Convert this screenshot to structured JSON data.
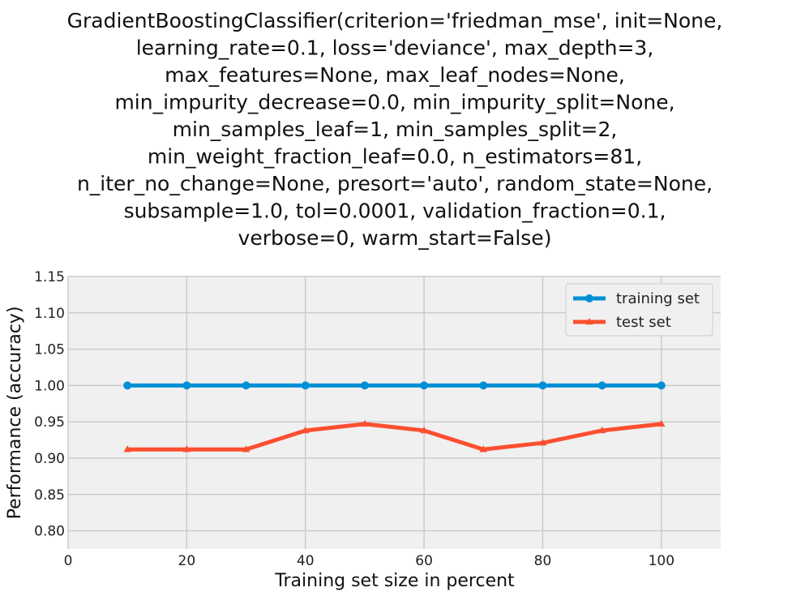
{
  "chart_data": {
    "type": "line",
    "title_lines": [
      "GradientBoostingClassifier(criterion='friedman_mse', init=None,",
      "learning_rate=0.1, loss='deviance', max_depth=3,",
      "max_features=None, max_leaf_nodes=None,",
      "min_impurity_decrease=0.0, min_impurity_split=None,",
      "min_samples_leaf=1, min_samples_split=2,",
      "min_weight_fraction_leaf=0.0, n_estimators=81,",
      "n_iter_no_change=None, presort='auto', random_state=None,",
      "subsample=1.0, tol=0.0001, validation_fraction=0.1,",
      "verbose=0, warm_start=False)"
    ],
    "xlabel": "Training set size in percent",
    "ylabel": "Performance (accuracy)",
    "xlim": [
      0,
      110
    ],
    "ylim": [
      0.775,
      1.15
    ],
    "xticks": [
      0,
      20,
      40,
      60,
      80,
      100
    ],
    "xtick_labels": [
      "0",
      "20",
      "40",
      "60",
      "80",
      "100"
    ],
    "yticks": [
      0.8,
      0.85,
      0.9,
      0.95,
      1.0,
      1.05,
      1.1,
      1.15
    ],
    "ytick_labels": [
      "0.80",
      "0.85",
      "0.90",
      "0.95",
      "1.00",
      "1.05",
      "1.10",
      "1.15"
    ],
    "grid": true,
    "legend_position": "top-right",
    "x": [
      10,
      20,
      30,
      40,
      50,
      60,
      70,
      80,
      90,
      100
    ],
    "series": [
      {
        "name": "training set",
        "color": "#008fd5",
        "marker": "circle",
        "values": [
          1.0,
          1.0,
          1.0,
          1.0,
          1.0,
          1.0,
          1.0,
          1.0,
          1.0,
          1.0
        ]
      },
      {
        "name": "test set",
        "color": "#fc4f30",
        "marker": "triangle",
        "values": [
          0.912,
          0.912,
          0.912,
          0.938,
          0.947,
          0.938,
          0.912,
          0.921,
          0.938,
          0.947
        ]
      }
    ],
    "colors": {
      "plot_background": "#f0f0f0",
      "grid": "#cbcbcb"
    }
  }
}
